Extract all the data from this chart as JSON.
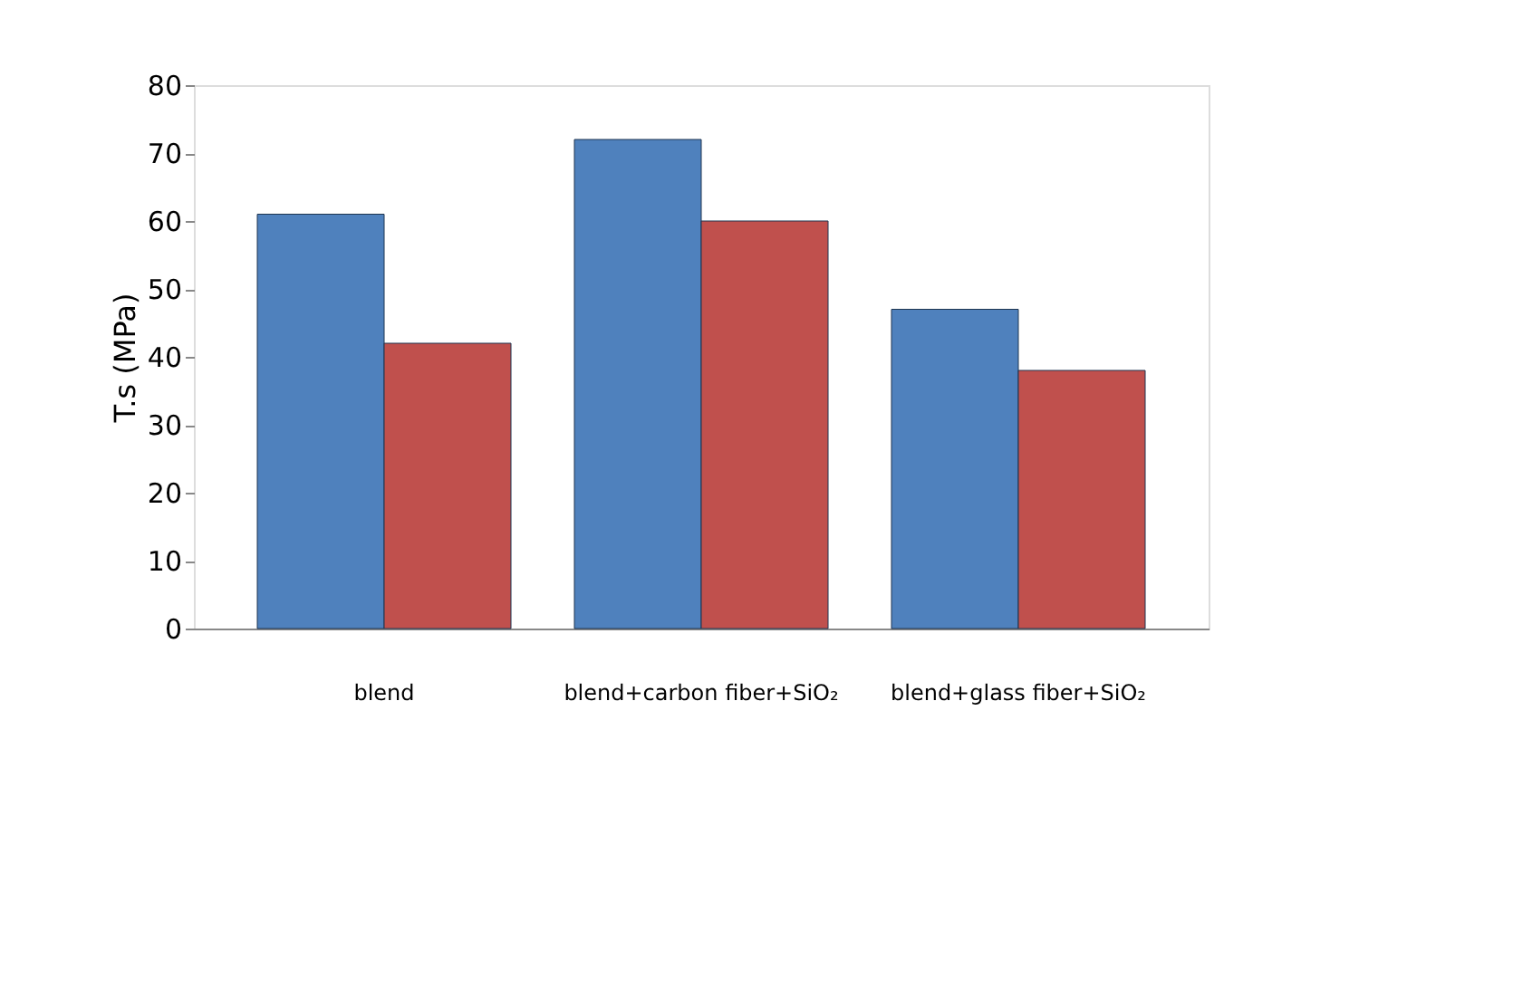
{
  "chart_data": {
    "type": "bar",
    "ylabel": "T.s (MPa)",
    "categories": [
      "blend",
      "blend+carbon fiber+SiO₂",
      "blend+glass fiber+SiO₂"
    ],
    "series": [
      {
        "color": "#4f81bd",
        "values": [
          61,
          72,
          47
        ]
      },
      {
        "color": "#c0504d",
        "values": [
          42,
          60,
          38
        ]
      }
    ],
    "ylim": [
      0,
      80
    ],
    "yticks": [
      0,
      10,
      20,
      30,
      40,
      50,
      60,
      70,
      80
    ],
    "grid": false
  }
}
